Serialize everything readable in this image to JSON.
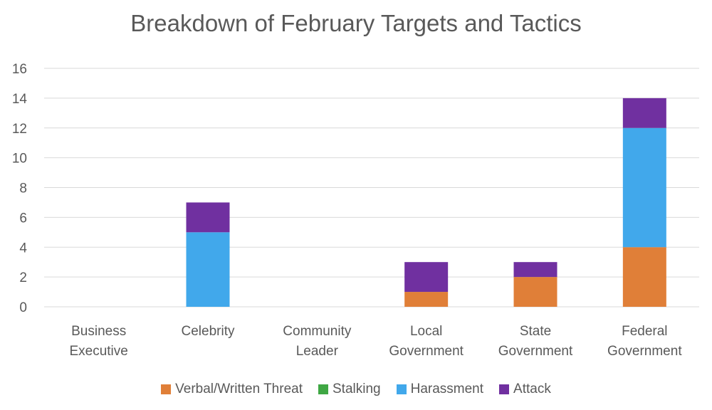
{
  "chart_data": {
    "type": "bar",
    "stacked": true,
    "title": "Breakdown of February Targets and Tactics",
    "xlabel": "",
    "ylabel": "",
    "ylim": [
      0,
      16
    ],
    "yticks": [
      0,
      2,
      4,
      6,
      8,
      10,
      12,
      14,
      16
    ],
    "grid": true,
    "legend_position": "bottom",
    "categories": [
      [
        "Business",
        "Executive"
      ],
      [
        "Celebrity"
      ],
      [
        "Community",
        "Leader"
      ],
      [
        "Local",
        "Government"
      ],
      [
        "State",
        "Government"
      ],
      [
        "Federal",
        "Government"
      ]
    ],
    "series": [
      {
        "name": "Verbal/Written Threat",
        "color": "#E07F38",
        "values": [
          0,
          0,
          0,
          1,
          2,
          4
        ]
      },
      {
        "name": "Stalking",
        "color": "#3FA744",
        "values": [
          0,
          0,
          0,
          0,
          0,
          0
        ]
      },
      {
        "name": "Harassment",
        "color": "#41A8EB",
        "values": [
          0,
          5,
          0,
          0,
          0,
          8
        ]
      },
      {
        "name": "Attack",
        "color": "#7030A0",
        "values": [
          0,
          2,
          0,
          2,
          1,
          2
        ]
      }
    ]
  }
}
